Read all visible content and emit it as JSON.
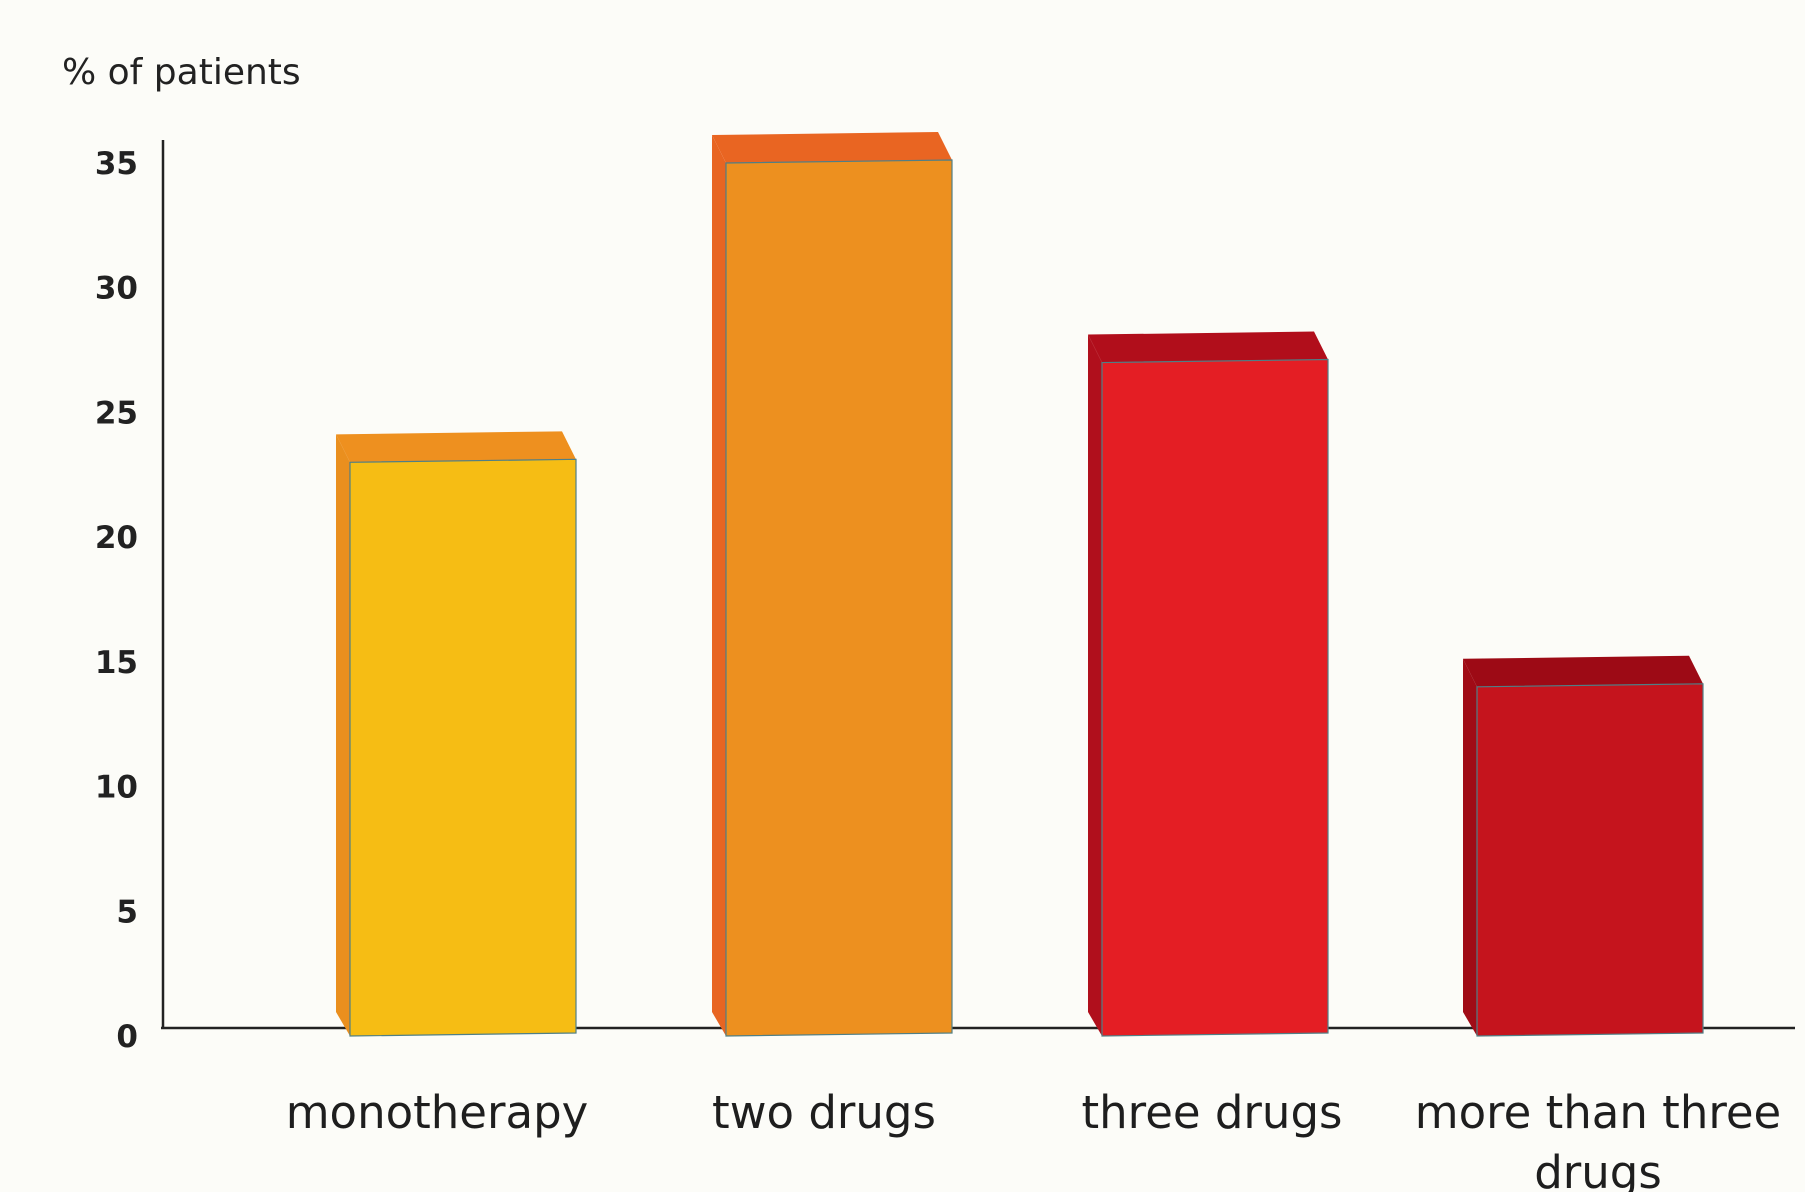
{
  "chart_data": {
    "type": "bar",
    "title": "",
    "ylabel": "% of patients",
    "xlabel": "",
    "categories": [
      "monotherapy",
      "two drugs",
      "three drugs",
      "more than three drugs"
    ],
    "values": [
      23,
      35,
      27,
      14
    ],
    "ylim": [
      0,
      35
    ],
    "yticks": [
      "0",
      "5",
      "10",
      "15",
      "20",
      "25",
      "30",
      "35"
    ],
    "grid": false,
    "legend": "none",
    "bar_style": "3d",
    "colors": {
      "fronts": [
        "#f6bd14",
        "#ed901f",
        "#e41e24",
        "#c5141d"
      ],
      "tops": [
        "#ee901f",
        "#e96522",
        "#b10e1b",
        "#9d0a15"
      ],
      "sides": [
        "#ea8f1e",
        "#e86522",
        "#b00f1c",
        "#a00c16"
      ],
      "axis": "#222222",
      "background": "#fcfcf8"
    }
  }
}
